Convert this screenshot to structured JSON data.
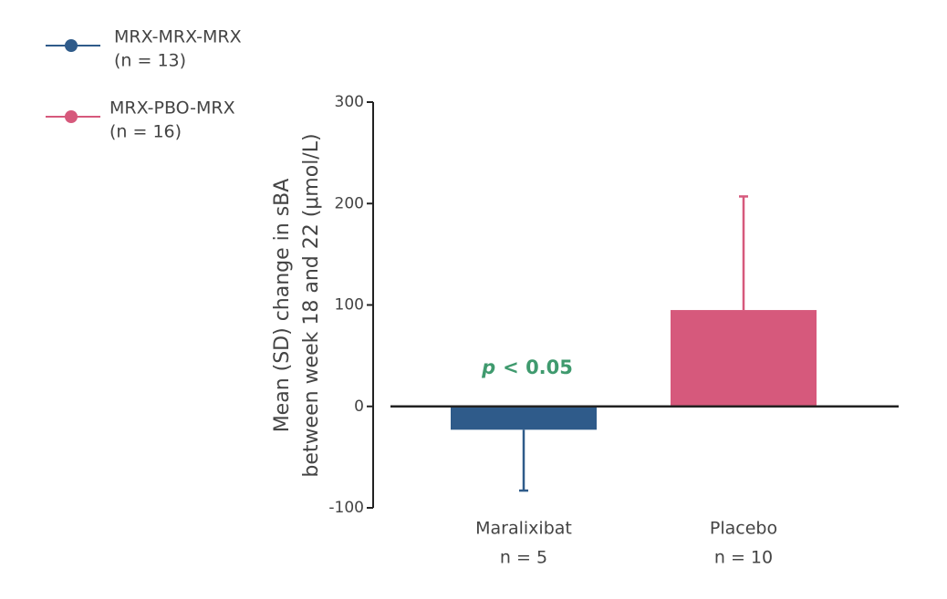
{
  "chart_data": {
    "type": "bar",
    "legend": [
      {
        "label": "MRX-MRX-MRX",
        "note": "(n = 13)",
        "color": "#2f5b8a"
      },
      {
        "label": "MRX-PBO-MRX",
        "note": "(n = 16)",
        "color": "#d6597c"
      }
    ],
    "y_label": [
      "Mean (SD) change in sBA",
      "between week 18 and 22 (μmol/L)"
    ],
    "categories": [
      "Maralixibat",
      "Placebo"
    ],
    "category_notes": [
      "n = 5",
      "n = 10"
    ],
    "values": [
      -23,
      95
    ],
    "errors": [
      60,
      112
    ],
    "colors": [
      "#2f5b8a",
      "#d6597c"
    ],
    "annotation": {
      "italic": "p",
      "text": "< 0.05",
      "color": "#3f9a6e"
    },
    "ylim": [
      -100,
      300
    ],
    "yticks": [
      -100,
      0,
      100,
      200,
      300
    ]
  }
}
